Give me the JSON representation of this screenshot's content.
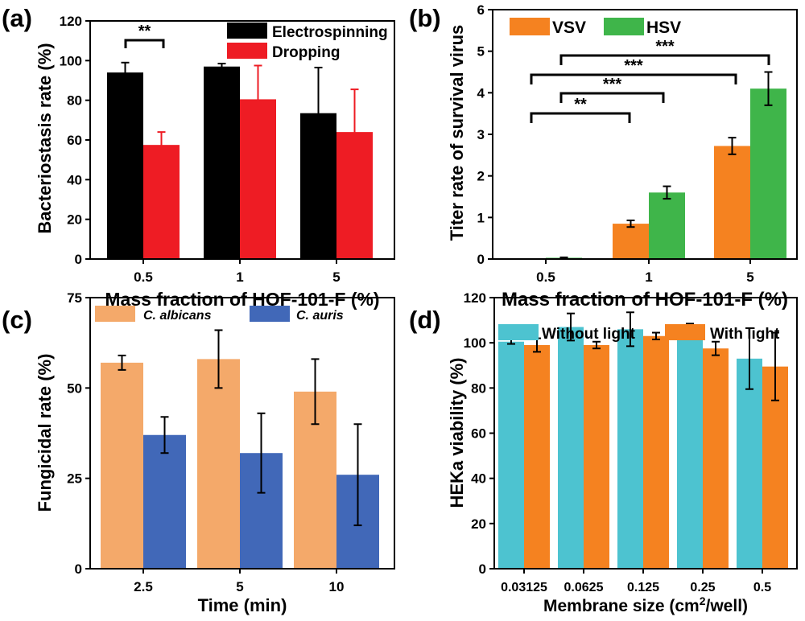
{
  "chart_data": [
    {
      "panel": "(a)",
      "type": "bar",
      "categories": [
        "0.5",
        "1",
        "5"
      ],
      "series": [
        {
          "name": "Electrospinning",
          "values": [
            94,
            97,
            73.5
          ],
          "errors": [
            5,
            1.5,
            23
          ]
        },
        {
          "name": "Dropping",
          "values": [
            57.5,
            80.5,
            64
          ],
          "errors": [
            6.5,
            17,
            21.5
          ]
        }
      ],
      "xlabel": "Mass fraction of HOF-101-F (%)",
      "ylabel": "Bacteriostasis rate (%)",
      "ylim": [
        0,
        120
      ],
      "yticks": [
        "0",
        "20",
        "40",
        "60",
        "80",
        "100",
        "120"
      ],
      "colors": [
        "#000000",
        "#ee1c24"
      ],
      "legend": "top-right",
      "annotations": [
        {
          "text": "**",
          "between": [
            "0.5 Electrospinning",
            "0.5 Dropping"
          ]
        }
      ]
    },
    {
      "panel": "(b)",
      "type": "bar",
      "categories": [
        "0.5",
        "1",
        "5"
      ],
      "series": [
        {
          "name": "VSV",
          "values": [
            0,
            0.85,
            2.72
          ],
          "errors": [
            0,
            0.08,
            0.2
          ]
        },
        {
          "name": "HSV",
          "values": [
            0.03,
            1.6,
            4.1
          ],
          "errors": [
            0.01,
            0.15,
            0.4
          ]
        }
      ],
      "xlabel": "Mass fraction of HOF-101-F (%)",
      "ylabel": "Titer rate of survival virus",
      "ylim": [
        0,
        6
      ],
      "yticks": [
        "0",
        "1",
        "2",
        "3",
        "4",
        "5",
        "6"
      ],
      "colors": [
        "#f58220",
        "#3fb54a"
      ],
      "legend": "top-left",
      "annotations": [
        "**",
        "***",
        "***",
        "***"
      ]
    },
    {
      "panel": "(c)",
      "type": "bar",
      "categories": [
        "2.5",
        "5",
        "10"
      ],
      "series": [
        {
          "name": "C. albicans",
          "values": [
            57,
            58,
            49
          ],
          "errors": [
            2,
            8,
            9
          ]
        },
        {
          "name": "C. auris",
          "values": [
            37,
            32,
            26
          ],
          "errors": [
            5,
            11,
            14
          ]
        }
      ],
      "xlabel": "Time (min)",
      "ylabel": "Fungicidal rate (%)",
      "ylim": [
        0,
        75
      ],
      "yticks": [
        "0",
        "25",
        "50",
        "75"
      ],
      "colors": [
        "#f4a96a",
        "#4168b8"
      ],
      "legend": "top"
    },
    {
      "panel": "(d)",
      "type": "bar",
      "categories": [
        "0.03125",
        "0.0625",
        "0.125",
        "0.25",
        "0.5"
      ],
      "series": [
        {
          "name": "Without light",
          "values": [
            100.5,
            107,
            106,
            106,
            93
          ],
          "errors": [
            1,
            6,
            7.5,
            2.5,
            13.5
          ]
        },
        {
          "name": "With  light",
          "values": [
            99,
            99,
            103,
            97.5,
            89.5
          ],
          "errors": [
            3,
            1.5,
            1.5,
            3,
            15
          ]
        }
      ],
      "xlabel": "Membrane size (cm²/well)",
      "ylabel": "HEKa viability (%)",
      "ylim": [
        0,
        120
      ],
      "yticks": [
        "0",
        "20",
        "40",
        "60",
        "80",
        "100",
        "120"
      ],
      "colors": [
        "#4dc3d0",
        "#f58220"
      ],
      "legend": "top"
    }
  ]
}
